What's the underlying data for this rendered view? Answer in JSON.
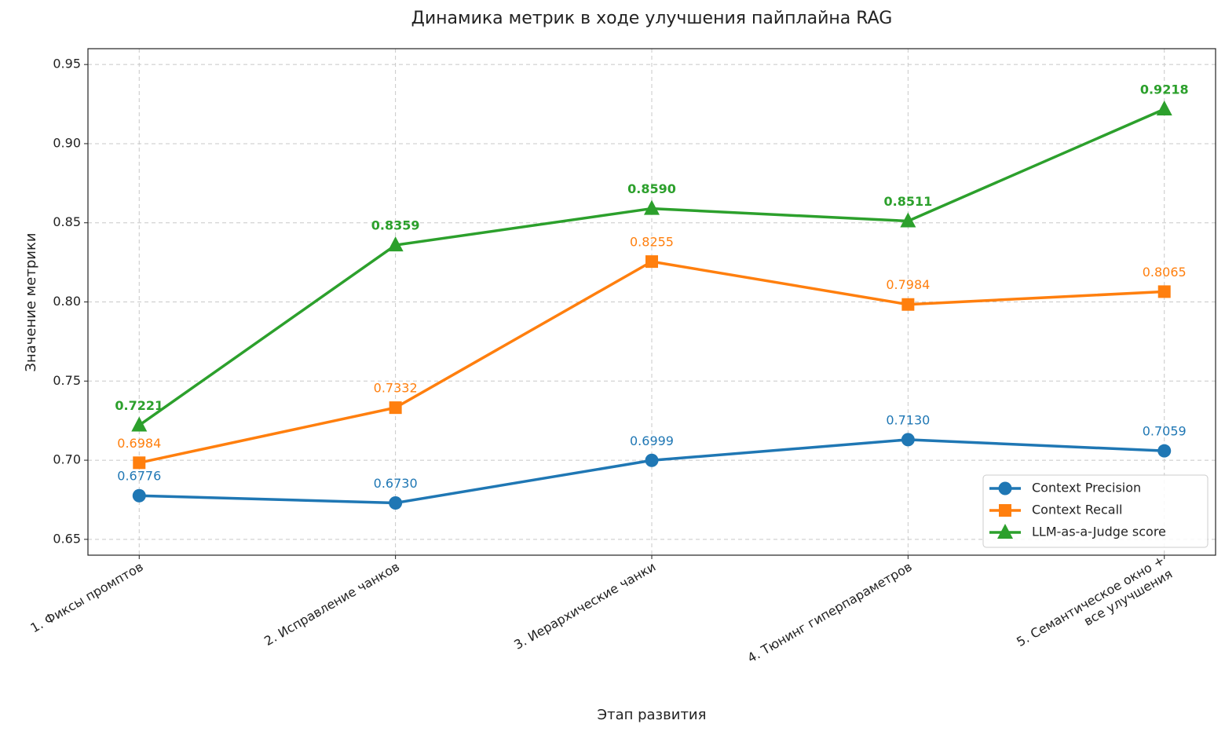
{
  "chart_data": {
    "type": "line",
    "title": "Динамика метрик в ходе улучшения пайплайна RAG",
    "x_label": "Этап развития",
    "y_label": "Значение метрики",
    "categories": [
      "1. Фиксы промптов",
      "2. Исправление чанков",
      "3. Иерархические чанки",
      "4. Тюнинг гиперпараметров",
      "5. Семантическое окно +\nвсе улучшения"
    ],
    "series": [
      {
        "name": "Context Precision",
        "color": "#1f77b4",
        "marker": "circle",
        "label_bold": false,
        "values": [
          0.6776,
          0.673,
          0.6999,
          0.713,
          0.7059
        ],
        "value_labels": [
          "0.6776",
          "0.6730",
          "0.6999",
          "0.7130",
          "0.7059"
        ]
      },
      {
        "name": "Context Recall",
        "color": "#ff7f0e",
        "marker": "square",
        "label_bold": false,
        "values": [
          0.6984,
          0.7332,
          0.8255,
          0.7984,
          0.8065
        ],
        "value_labels": [
          "0.6984",
          "0.7332",
          "0.8255",
          "0.7984",
          "0.8065"
        ]
      },
      {
        "name": "LLM-as-a-Judge score",
        "color": "#2ca02c",
        "marker": "triangle",
        "label_bold": true,
        "values": [
          0.7221,
          0.8359,
          0.859,
          0.8511,
          0.9218
        ],
        "value_labels": [
          "0.7221",
          "0.8359",
          "0.8590",
          "0.8511",
          "0.9218"
        ]
      }
    ],
    "ylim": [
      0.64,
      0.96
    ],
    "yticks": [
      {
        "value": 0.65,
        "label": "0.65"
      },
      {
        "value": 0.7,
        "label": "0.70"
      },
      {
        "value": 0.75,
        "label": "0.75"
      },
      {
        "value": 0.8,
        "label": "0.80"
      },
      {
        "value": 0.85,
        "label": "0.85"
      },
      {
        "value": 0.9,
        "label": "0.90"
      },
      {
        "value": 0.95,
        "label": "0.95"
      }
    ],
    "grid": true,
    "legend": "lower right"
  }
}
